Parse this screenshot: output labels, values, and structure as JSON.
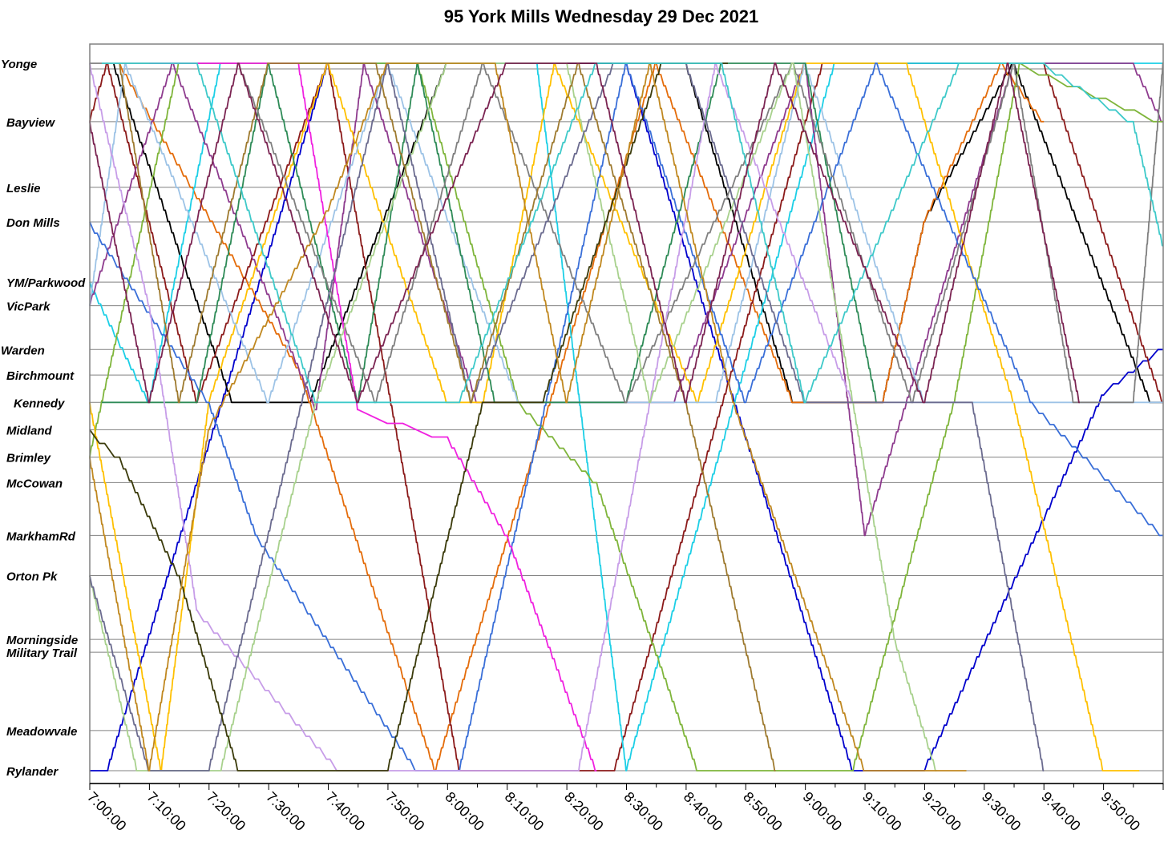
{
  "chart_data": {
    "type": "line",
    "title": "95 York Mills Wednesday 29 Dec 2021",
    "xlabel": "",
    "ylabel": "",
    "x_ticks": [
      "7:00:00",
      "7:10:00",
      "7:20:00",
      "7:30:00",
      "7:40:00",
      "7:50:00",
      "8:00:00",
      "8:10:00",
      "8:20:00",
      "8:30:00",
      "8:40:00",
      "8:50:00",
      "9:00:00",
      "9:10:00",
      "9:20:00",
      "9:30:00",
      "9:40:00",
      "9:50:00"
    ],
    "xlim": [
      "7:00:00",
      "10:00:00"
    ],
    "grid": "horizontal lines at each stop",
    "stops": [
      "Yonge",
      "Bayview",
      "Leslie",
      "Don Mills",
      "YM/Parkwood",
      "VicPark",
      "Warden",
      "Birchmount",
      "Kennedy",
      "Midland",
      "Brimley",
      "McCowan",
      "MarkhamRd",
      "Orton Pk",
      "Morningside",
      "Military Trail",
      "Meadowvale",
      "Rylander"
    ],
    "stop_positions": [
      0,
      3.2,
      6.8,
      8.7,
      12.0,
      13.3,
      15.7,
      17.1,
      18.6,
      20.1,
      21.6,
      23.0,
      25.9,
      28.1,
      31.6,
      32.3,
      36.6,
      38.8
    ],
    "approx_trip_minutes": 52,
    "series": [
      {
        "color": "#0000cc",
        "x": [
          "7:00",
          "7:03",
          "7:40",
          "8:20",
          "8:30",
          "9:08",
          "9:20",
          "9:50",
          "9:60"
        ],
        "y": [
          38.8,
          38.8,
          0,
          0,
          0,
          38.8,
          38.8,
          18.2,
          15.7
        ]
      },
      {
        "color": "#000000",
        "x": [
          "7:04",
          "7:24",
          "7:37",
          "8:00",
          "8:11",
          "8:40",
          "8:58",
          "9:01",
          "9:13",
          "9:20",
          "9:35",
          "9:58",
          "9:60"
        ],
        "y": [
          0,
          18.6,
          18.6,
          0,
          0,
          0,
          18.6,
          18.6,
          18.6,
          8.7,
          0,
          18.6,
          18.6
        ]
      },
      {
        "color": "#e46c0a",
        "x": [
          "7:05",
          "7:35",
          "7:58",
          "8:35",
          "8:58",
          "9:13",
          "9:20",
          "9:33",
          "9:40"
        ],
        "y": [
          0,
          16.7,
          38.8,
          0,
          18.6,
          18.6,
          8.7,
          0,
          3.2
        ]
      },
      {
        "color": "#8b1a1a",
        "x": [
          "7:00",
          "7:03",
          "7:18",
          "7:40",
          "8:02",
          "8:28",
          "9:03",
          "9:40",
          "9:60"
        ],
        "y": [
          3.2,
          0,
          18.6,
          0,
          38.8,
          38.8,
          0,
          0,
          18.6
        ]
      },
      {
        "color": "#1ccfe6",
        "x": [
          "7:00",
          "7:10",
          "7:22",
          "7:47",
          "8:15",
          "8:30",
          "9:05",
          "9:40",
          "9:60"
        ],
        "y": [
          12.0,
          18.6,
          0,
          0,
          0,
          38.8,
          0,
          0,
          0
        ]
      },
      {
        "color": "#8e3b8e",
        "x": [
          "7:00",
          "7:14",
          "7:38",
          "7:46",
          "8:05",
          "8:38",
          "9:00",
          "9:10",
          "9:35",
          "9:55",
          "9:60"
        ],
        "y": [
          13.3,
          0,
          19,
          0,
          18.6,
          18.6,
          0,
          25.9,
          0,
          0,
          3.2
        ]
      },
      {
        "color": "#7fb53b",
        "x": [
          "7:00",
          "7:15",
          "7:30",
          "7:55",
          "8:12",
          "8:25",
          "8:42",
          "9:05",
          "9:08",
          "9:25",
          "9:36",
          "9:60"
        ],
        "y": [
          21.6,
          0,
          0,
          0,
          18.6,
          23,
          38.8,
          38.8,
          38.8,
          18.6,
          0,
          3.2
        ]
      },
      {
        "color": "#ffc000",
        "x": [
          "7:00",
          "7:12",
          "7:20",
          "7:40",
          "8:00",
          "8:06",
          "8:18",
          "8:42",
          "9:00",
          "9:17",
          "9:35",
          "9:50",
          "9:56"
        ],
        "y": [
          18.6,
          38.8,
          18.6,
          0,
          18.6,
          18.6,
          0,
          18.6,
          0,
          0,
          18.6,
          38.8,
          38.8
        ]
      },
      {
        "color": "#9dc3e6",
        "x": [
          "7:00",
          "7:06",
          "7:30",
          "7:50",
          "8:12",
          "8:22",
          "8:45",
          "9:00",
          "9:20",
          "9:28",
          "9:60"
        ],
        "y": [
          13.3,
          0,
          18.6,
          0,
          18.6,
          18.6,
          18.6,
          0,
          18.6,
          18.6,
          18.6
        ]
      },
      {
        "color": "#3a6fd8",
        "x": [
          "7:00",
          "7:20",
          "7:28",
          "7:55",
          "8:02",
          "8:30",
          "8:50",
          "9:12",
          "9:38",
          "9:60"
        ],
        "y": [
          8.7,
          18.6,
          25.9,
          38.8,
          38.8,
          0,
          18.6,
          0,
          18.6,
          25.9
        ]
      },
      {
        "color": "#2e8b57",
        "x": [
          "7:02",
          "7:18",
          "7:30",
          "7:45",
          "7:55",
          "8:08",
          "8:30",
          "8:46",
          "9:00",
          "9:12"
        ],
        "y": [
          18.6,
          18.6,
          0,
          18.6,
          0,
          18.6,
          18.6,
          0,
          0,
          18.6
        ]
      },
      {
        "color": "#7f7f7f",
        "x": [
          "7:00",
          "7:25",
          "7:48",
          "8:06",
          "8:30",
          "8:58",
          "9:18",
          "9:35",
          "9:45",
          "9:55",
          "9:60"
        ],
        "y": [
          0,
          0,
          18.6,
          0,
          18.6,
          0,
          18.6,
          0,
          18.6,
          18.6,
          0
        ]
      },
      {
        "color": "#f022e0",
        "x": [
          "7:10",
          "7:35",
          "7:45",
          "8:00",
          "8:10",
          "8:25"
        ],
        "y": [
          0,
          0,
          19,
          20.5,
          25.9,
          38.8
        ]
      },
      {
        "color": "#c79de8",
        "x": [
          "7:00",
          "7:10",
          "7:18",
          "7:42",
          "7:46",
          "8:22",
          "8:34",
          "8:45",
          "9:08"
        ],
        "y": [
          0,
          13.3,
          30,
          38.8,
          38.8,
          38.8,
          18.6,
          0,
          18.6
        ]
      },
      {
        "color": "#a8d18d",
        "x": [
          "7:00",
          "7:08",
          "7:22",
          "7:38",
          "8:00",
          "8:20",
          "8:34",
          "8:58",
          "9:15",
          "9:22"
        ],
        "y": [
          28.1,
          38.8,
          38.8,
          18.6,
          0,
          0,
          18.6,
          0,
          31.6,
          38.8
        ]
      },
      {
        "color": "#6b6b8f",
        "x": [
          "7:00",
          "7:10",
          "7:20",
          "7:50",
          "8:04",
          "8:28",
          "8:40",
          "9:00",
          "9:28",
          "9:40"
        ],
        "y": [
          28.1,
          38.8,
          38.8,
          0,
          18.6,
          0,
          0,
          18.6,
          18.6,
          38.8
        ]
      },
      {
        "color": "#3a3a0a",
        "x": [
          "7:00",
          "7:05",
          "7:15",
          "7:25",
          "7:35",
          "7:50",
          "8:06",
          "8:16",
          "8:36",
          "8:47"
        ],
        "y": [
          20.1,
          21.6,
          28.1,
          38.8,
          38.8,
          38.8,
          18.6,
          18.6,
          0,
          0
        ]
      },
      {
        "color": "#c08820",
        "x": [
          "7:00",
          "7:10",
          "7:20",
          "7:40",
          "7:50",
          "8:08",
          "8:20",
          "8:34",
          "8:48",
          "9:10",
          "9:27"
        ],
        "y": [
          21.6,
          38.8,
          20.1,
          8.1,
          0,
          0,
          18.6,
          0,
          18.6,
          38.8,
          38.8
        ]
      },
      {
        "color": "#9e7a2f",
        "x": [
          "7:05",
          "7:15",
          "7:30",
          "7:48",
          "8:04",
          "8:22",
          "8:40",
          "8:55"
        ],
        "y": [
          0,
          18.6,
          0,
          0,
          18.6,
          0,
          18.6,
          38.8
        ]
      },
      {
        "color": "#3ec9c9",
        "x": [
          "7:02",
          "7:18",
          "7:38",
          "8:02",
          "8:25",
          "8:46",
          "9:00",
          "9:26",
          "9:40",
          "9:55",
          "9:60"
        ],
        "y": [
          0,
          0,
          18.6,
          18.6,
          0,
          0,
          18.6,
          0,
          0,
          3.2,
          10.0
        ]
      },
      {
        "color": "#7b2452",
        "x": [
          "7:00",
          "7:10",
          "7:25",
          "7:45",
          "8:10",
          "8:25",
          "8:40",
          "8:55",
          "9:20",
          "9:34",
          "9:46"
        ],
        "y": [
          3.2,
          18.6,
          0,
          18.6,
          0,
          0,
          18.6,
          0,
          18.6,
          0,
          18.6
        ]
      }
    ]
  }
}
